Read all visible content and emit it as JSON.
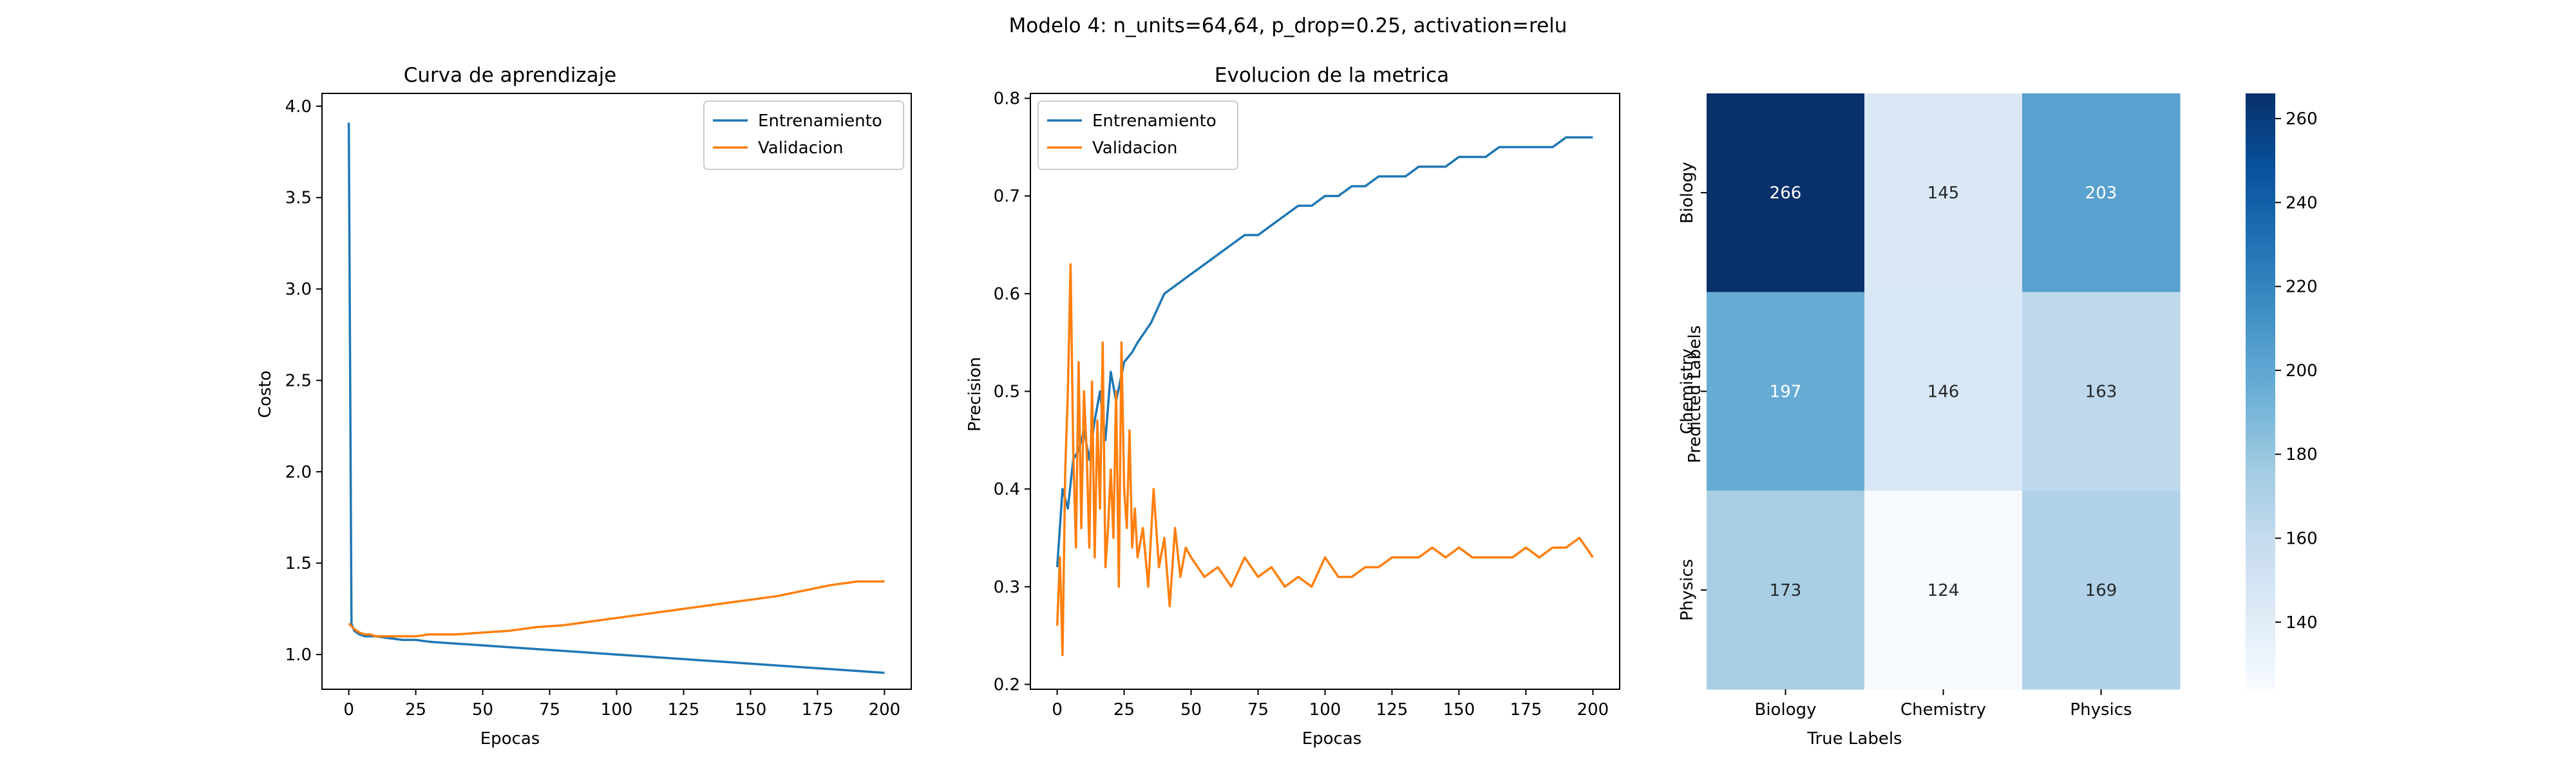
{
  "figure": {
    "suptitle": "Modelo 4: n_units=64,64, p_drop=0.25, activation=relu"
  },
  "chart_data": [
    {
      "type": "line",
      "title": "Curva de aprendizaje",
      "xlabel": "Epocas",
      "ylabel": "Costo",
      "xlim": [
        -10,
        210
      ],
      "ylim": [
        0.81,
        4.07
      ],
      "xticks": [
        0,
        25,
        50,
        75,
        100,
        125,
        150,
        175,
        200
      ],
      "yticks": [
        1.0,
        1.5,
        2.0,
        2.5,
        3.0,
        3.5,
        4.0
      ],
      "ytick_labels": [
        "1.0",
        "1.5",
        "2.0",
        "2.5",
        "3.0",
        "3.5",
        "4.0"
      ],
      "legend": "upper right",
      "grid": false,
      "series": [
        {
          "name": "Entrenamiento",
          "color": "#1f77b4",
          "x": [
            0,
            1,
            2,
            4,
            6,
            8,
            10,
            15,
            20,
            25,
            30,
            40,
            50,
            60,
            70,
            80,
            90,
            100,
            110,
            120,
            130,
            140,
            150,
            160,
            170,
            180,
            190,
            200
          ],
          "y": [
            3.91,
            1.17,
            1.13,
            1.11,
            1.1,
            1.1,
            1.1,
            1.09,
            1.08,
            1.08,
            1.07,
            1.06,
            1.05,
            1.04,
            1.03,
            1.02,
            1.01,
            1.0,
            0.99,
            0.98,
            0.97,
            0.96,
            0.95,
            0.94,
            0.93,
            0.92,
            0.91,
            0.9
          ]
        },
        {
          "name": "Validacion",
          "color": "#ff7f0e",
          "x": [
            0,
            2,
            4,
            6,
            8,
            10,
            15,
            20,
            25,
            30,
            40,
            50,
            60,
            70,
            80,
            90,
            100,
            110,
            120,
            130,
            140,
            150,
            160,
            170,
            180,
            190,
            200
          ],
          "y": [
            1.17,
            1.14,
            1.12,
            1.11,
            1.11,
            1.1,
            1.1,
            1.1,
            1.1,
            1.11,
            1.11,
            1.12,
            1.13,
            1.15,
            1.16,
            1.18,
            1.2,
            1.22,
            1.24,
            1.26,
            1.28,
            1.3,
            1.32,
            1.35,
            1.38,
            1.4,
            1.4
          ]
        }
      ]
    },
    {
      "type": "line",
      "title": "Evolucion de la metrica",
      "xlabel": "Epocas",
      "ylabel": "Precision",
      "xlim": [
        -10,
        210
      ],
      "ylim": [
        0.195,
        0.805
      ],
      "xticks": [
        0,
        25,
        50,
        75,
        100,
        125,
        150,
        175,
        200
      ],
      "yticks": [
        0.2,
        0.3,
        0.4,
        0.5,
        0.6,
        0.7,
        0.8
      ],
      "ytick_labels": [
        "0.2",
        "0.3",
        "0.4",
        "0.5",
        "0.6",
        "0.7",
        "0.8"
      ],
      "legend": "upper left",
      "grid": false,
      "series": [
        {
          "name": "Entrenamiento",
          "color": "#1f77b4",
          "x": [
            0,
            2,
            4,
            6,
            8,
            10,
            12,
            14,
            16,
            18,
            20,
            22,
            25,
            28,
            30,
            35,
            40,
            45,
            50,
            55,
            60,
            65,
            70,
            75,
            80,
            85,
            90,
            95,
            100,
            105,
            110,
            115,
            120,
            125,
            130,
            135,
            140,
            145,
            150,
            155,
            160,
            165,
            170,
            175,
            180,
            185,
            190,
            195,
            200
          ],
          "y": [
            0.32,
            0.4,
            0.38,
            0.43,
            0.44,
            0.46,
            0.43,
            0.47,
            0.5,
            0.45,
            0.52,
            0.49,
            0.53,
            0.54,
            0.55,
            0.57,
            0.6,
            0.61,
            0.62,
            0.63,
            0.64,
            0.65,
            0.66,
            0.66,
            0.67,
            0.68,
            0.69,
            0.69,
            0.7,
            0.7,
            0.71,
            0.71,
            0.72,
            0.72,
            0.72,
            0.73,
            0.73,
            0.73,
            0.74,
            0.74,
            0.74,
            0.75,
            0.75,
            0.75,
            0.75,
            0.75,
            0.76,
            0.76,
            0.76
          ]
        },
        {
          "name": "Validacion",
          "color": "#ff7f0e",
          "x": [
            0,
            1,
            2,
            3,
            4,
            5,
            6,
            7,
            8,
            9,
            10,
            11,
            12,
            13,
            14,
            15,
            16,
            17,
            18,
            19,
            20,
            21,
            22,
            23,
            24,
            25,
            26,
            27,
            28,
            29,
            30,
            32,
            34,
            36,
            38,
            40,
            42,
            44,
            46,
            48,
            50,
            55,
            60,
            65,
            70,
            75,
            80,
            85,
            90,
            95,
            100,
            105,
            110,
            115,
            120,
            125,
            130,
            135,
            140,
            145,
            150,
            155,
            160,
            165,
            170,
            175,
            180,
            185,
            190,
            195,
            200
          ],
          "y": [
            0.26,
            0.33,
            0.23,
            0.42,
            0.5,
            0.63,
            0.44,
            0.34,
            0.53,
            0.36,
            0.5,
            0.44,
            0.34,
            0.51,
            0.33,
            0.47,
            0.38,
            0.55,
            0.32,
            0.36,
            0.42,
            0.35,
            0.5,
            0.3,
            0.55,
            0.4,
            0.36,
            0.46,
            0.34,
            0.38,
            0.33,
            0.36,
            0.3,
            0.4,
            0.32,
            0.35,
            0.28,
            0.36,
            0.31,
            0.34,
            0.33,
            0.31,
            0.32,
            0.3,
            0.33,
            0.31,
            0.32,
            0.3,
            0.31,
            0.3,
            0.33,
            0.31,
            0.31,
            0.32,
            0.32,
            0.33,
            0.33,
            0.33,
            0.34,
            0.33,
            0.34,
            0.33,
            0.33,
            0.33,
            0.33,
            0.34,
            0.33,
            0.34,
            0.34,
            0.35,
            0.33
          ]
        }
      ]
    },
    {
      "type": "heatmap",
      "xlabel": "True Labels",
      "ylabel": "Predicted Labels",
      "x_categories": [
        "Biology",
        "Chemistry",
        "Physics"
      ],
      "y_categories": [
        "Biology",
        "Chemistry",
        "Physics"
      ],
      "values": [
        [
          266,
          145,
          203
        ],
        [
          197,
          146,
          163
        ],
        [
          173,
          124,
          169
        ]
      ],
      "colormap": "Blues",
      "vmin": 124,
      "vmax": 266,
      "colorbar_ticks": [
        140,
        160,
        180,
        200,
        220,
        240,
        260
      ],
      "colorbar_tick_labels": [
        "140",
        "160",
        "180",
        "200",
        "220",
        "240",
        "260"
      ]
    }
  ]
}
